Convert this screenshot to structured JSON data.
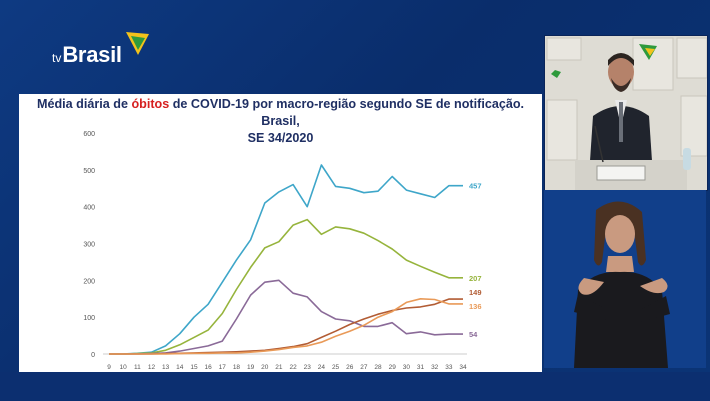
{
  "broadcast": {
    "logo_prefix": "tv",
    "logo_name": "Brasil"
  },
  "slide": {
    "title_part1": "Média diária de ",
    "title_highlight": "óbitos",
    "title_part2": " de COVID-19 por macro-região segundo SE de notificação. Brasil,",
    "title_line2": "SE 34/2020"
  },
  "chart_data": {
    "type": "line",
    "title": "Média diária de óbitos de COVID-19 por macro-região segundo SE de notificação. Brasil, SE 34/2020",
    "xlabel": "",
    "ylabel": "",
    "x": [
      9,
      10,
      11,
      12,
      13,
      14,
      15,
      16,
      17,
      18,
      19,
      20,
      21,
      22,
      23,
      24,
      25,
      26,
      27,
      28,
      29,
      30,
      31,
      32,
      33,
      34
    ],
    "ylim": [
      0,
      600
    ],
    "yticks": [
      0,
      100,
      200,
      300,
      400,
      500,
      600
    ],
    "grid": false,
    "series": [
      {
        "color": "#3ea6c9",
        "end_label": "457",
        "values": [
          0,
          0,
          2,
          5,
          22,
          55,
          100,
          135,
          195,
          255,
          310,
          410,
          440,
          460,
          400,
          513,
          455,
          450,
          438,
          442,
          482,
          445,
          435,
          425,
          457,
          457
        ]
      },
      {
        "color": "#96b43c",
        "end_label": "207",
        "values": [
          0,
          0,
          1,
          3,
          10,
          25,
          45,
          65,
          110,
          175,
          235,
          288,
          305,
          350,
          365,
          325,
          345,
          340,
          328,
          308,
          285,
          255,
          238,
          222,
          207,
          207
        ]
      },
      {
        "color": "#8a6a98",
        "end_label": "54",
        "values": [
          0,
          0,
          0,
          1,
          3,
          8,
          15,
          22,
          35,
          95,
          160,
          195,
          200,
          165,
          155,
          115,
          95,
          90,
          75,
          75,
          85,
          55,
          60,
          52,
          54,
          54
        ]
      },
      {
        "color": "#b25c34",
        "end_label": "149",
        "values": [
          0,
          0,
          0,
          0,
          1,
          2,
          3,
          4,
          5,
          6,
          8,
          10,
          15,
          20,
          28,
          45,
          62,
          80,
          95,
          108,
          118,
          125,
          128,
          135,
          149,
          149
        ]
      },
      {
        "color": "#e99a58",
        "end_label": "136",
        "values": [
          0,
          0,
          0,
          0,
          0,
          1,
          2,
          2,
          3,
          3,
          5,
          8,
          12,
          18,
          22,
          32,
          48,
          62,
          78,
          100,
          115,
          140,
          150,
          148,
          136,
          136
        ]
      }
    ]
  },
  "colors": {
    "background": "#0b2a63",
    "slide_bg": "#ffffff",
    "title_text": "#1f2f63",
    "title_highlight": "#d62020"
  }
}
